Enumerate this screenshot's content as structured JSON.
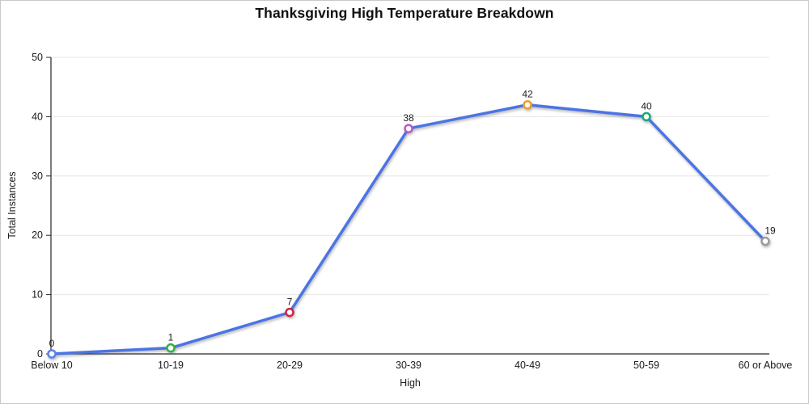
{
  "chart_data": {
    "type": "line",
    "title": "Thanksgiving High Temperature Breakdown",
    "xlabel": "High",
    "ylabel": "Total Instances",
    "categories": [
      "Below 10",
      "10-19",
      "20-29",
      "30-39",
      "40-49",
      "50-59",
      "60 or Above"
    ],
    "values": [
      0,
      1,
      7,
      38,
      42,
      40,
      19
    ],
    "data_labels": [
      "0",
      "1",
      "7",
      "38",
      "42",
      "40",
      "19"
    ],
    "ylim": [
      0,
      50
    ],
    "yticks": [
      0,
      10,
      20,
      30,
      40,
      50
    ],
    "grid": "horizontal",
    "legend": "none",
    "line_color": "#4b74e4",
    "point_fill": "#ffffff",
    "point_colors": [
      "#5b83ea",
      "#2fb344",
      "#d6223e",
      "#b55bc8",
      "#f59a23",
      "#1ca878",
      "#9b9b9b"
    ],
    "colors": {
      "grid": "#e6e6e6",
      "axis": "#262626",
      "tick_text": "#1a1a1a",
      "data_label_text": "#1a1a1a",
      "background": "#ffffff",
      "frame_border": "#c9c9c9"
    }
  }
}
